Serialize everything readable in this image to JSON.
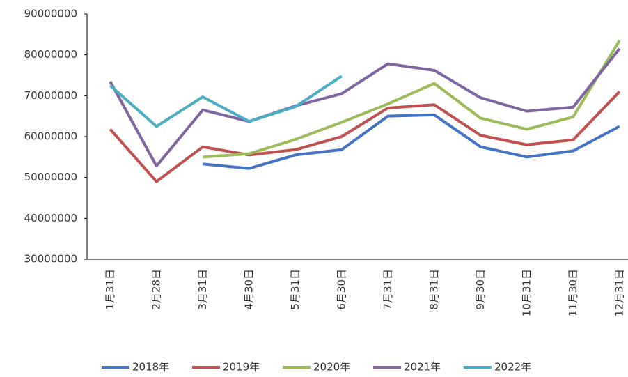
{
  "chart_data": {
    "type": "line",
    "categories": [
      "1月31日",
      "2月28日",
      "3月31日",
      "4月30日",
      "5月31日",
      "6月30日",
      "7月31日",
      "8月31日",
      "9月30日",
      "10月31日",
      "11月30日",
      "12月31日"
    ],
    "series": [
      {
        "name": "2018年",
        "color": "#4472c4",
        "values": [
          null,
          null,
          53300000,
          52200000,
          55500000,
          56800000,
          65000000,
          65300000,
          57500000,
          55000000,
          56500000,
          62500000
        ]
      },
      {
        "name": "2019年",
        "color": "#c0504d",
        "values": [
          61800000,
          49000000,
          57500000,
          55500000,
          56800000,
          60000000,
          67000000,
          67800000,
          60300000,
          58000000,
          59200000,
          71000000
        ]
      },
      {
        "name": "2020年",
        "color": "#9bbb59",
        "values": [
          null,
          null,
          55000000,
          55800000,
          59300000,
          63500000,
          68000000,
          73000000,
          64500000,
          61800000,
          64800000,
          83500000
        ]
      },
      {
        "name": "2021年",
        "color": "#8064a2",
        "values": [
          73500000,
          52800000,
          66500000,
          63700000,
          67500000,
          70500000,
          77800000,
          76200000,
          69500000,
          66200000,
          67200000,
          81500000
        ]
      },
      {
        "name": "2022年",
        "color": "#4bacc6",
        "values": [
          72500000,
          62500000,
          69700000,
          63700000,
          67300000,
          74800000,
          null,
          null,
          null,
          null,
          null,
          null
        ]
      }
    ],
    "ylim": [
      30000000,
      90000000
    ],
    "yticks": [
      30000000,
      40000000,
      50000000,
      60000000,
      70000000,
      80000000,
      90000000
    ],
    "grid": false,
    "legend": "bottom"
  }
}
